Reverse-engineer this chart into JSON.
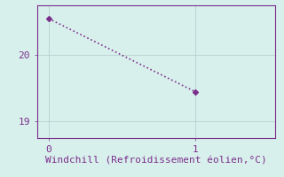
{
  "x": [
    0,
    1
  ],
  "y": [
    20.55,
    19.45
  ],
  "line_color": "#7b2f8c",
  "marker": "D",
  "marker_size": 3,
  "bg_color": "#d8f0ec",
  "grid_color": "#b0c8c8",
  "xlabel": "Windchill (Refroidissement éolien,°C)",
  "xlabel_fontsize": 8,
  "tick_fontsize": 8,
  "xlim": [
    -0.08,
    1.55
  ],
  "ylim": [
    18.75,
    20.75
  ],
  "yticks": [
    19,
    20
  ],
  "xticks": [
    0,
    1
  ],
  "line_style": "dotted",
  "line_width": 1.2
}
